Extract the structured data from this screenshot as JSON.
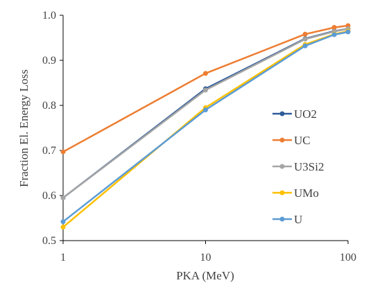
{
  "chart_data": {
    "type": "line",
    "xscale": "log",
    "xlim": [
      1,
      100
    ],
    "ylim": [
      0.5,
      1.0
    ],
    "xlabel": "PKA (MeV)",
    "ylabel": "Fraction El. Energy Loss",
    "xticks": [
      "1",
      "10",
      "100"
    ],
    "yticks": [
      "0.5",
      "0.6",
      "0.7",
      "0.8",
      "0.9",
      "1.0"
    ],
    "grid": false,
    "legend_position": "right",
    "series": [
      {
        "name": "UO2",
        "color": "#2E5C9A",
        "x": [
          1,
          10,
          50,
          80,
          100
        ],
        "y": [
          0.595,
          0.837,
          0.948,
          0.965,
          0.97
        ]
      },
      {
        "name": "UC",
        "color": "#ED7D31",
        "x": [
          1,
          10,
          50,
          80,
          100
        ],
        "y": [
          0.697,
          0.871,
          0.958,
          0.973,
          0.977
        ]
      },
      {
        "name": "U3Si2",
        "color": "#A5A5A5",
        "x": [
          1,
          10,
          50,
          80,
          100
        ],
        "y": [
          0.595,
          0.834,
          0.947,
          0.964,
          0.97
        ]
      },
      {
        "name": "UMo",
        "color": "#FFC000",
        "x": [
          1,
          10,
          50,
          80,
          100
        ],
        "y": [
          0.53,
          0.795,
          0.935,
          0.958,
          0.965
        ]
      },
      {
        "name": "U",
        "color": "#5B9BD5",
        "x": [
          1,
          10,
          50,
          80,
          100
        ],
        "y": [
          0.542,
          0.79,
          0.932,
          0.957,
          0.963
        ]
      }
    ]
  }
}
